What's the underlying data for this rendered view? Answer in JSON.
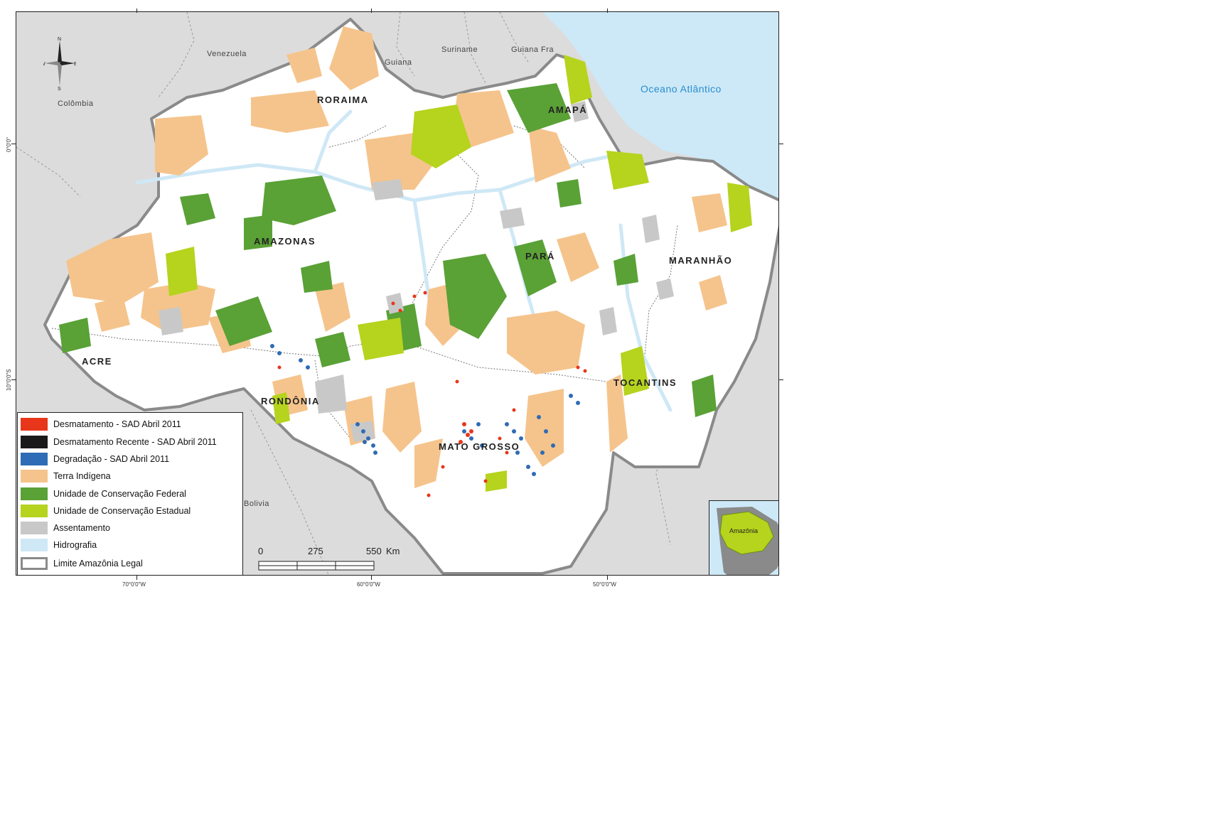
{
  "map": {
    "axis": {
      "x_ticks": [
        "70°0'0\"W",
        "60°0'0\"W",
        "50°0'0\"W"
      ],
      "y_ticks": [
        "0°0'0\"",
        "10°0'0\"S"
      ]
    },
    "compass": {
      "n": "N",
      "s": "S",
      "e": "E",
      "w": "W"
    },
    "ocean_label": "Oceano Atlântico",
    "countries": [
      "Venezuela",
      "Colômbia",
      "Guiana",
      "Suriname",
      "Guiana Fra",
      "Bolivia"
    ],
    "states": [
      "RORAIMA",
      "AMAPÁ",
      "AMAZONAS",
      "PARÁ",
      "MARANHÃO",
      "ACRE",
      "RONDÔNIA",
      "TOCANTINS",
      "MATO GROSSO"
    ],
    "colors": {
      "background": "#dcdcdc",
      "ocean": "#cde9f7",
      "amazonia": "#ffffff",
      "desmatamento": "#e8361a",
      "desmatamento_recente": "#1a1a1a",
      "degradacao": "#2e6cb5",
      "terra_indigena": "#f5c48c",
      "uc_federal": "#5aa136",
      "uc_estadual": "#b6d31e",
      "assentamento": "#c8c8c8",
      "hidrografia": "#cfe8f6",
      "limite": "#8a8a8a"
    }
  },
  "legend": {
    "items": [
      {
        "label": "Desmatamento - SAD Abril 2011",
        "color": "#e8361a"
      },
      {
        "label": "Desmatamento Recente - SAD Abril 2011",
        "color": "#1a1a1a"
      },
      {
        "label": "Degradação - SAD Abril 2011",
        "color": "#2e6cb5"
      },
      {
        "label": "Terra Indígena",
        "color": "#f5c48c"
      },
      {
        "label": "Unidade de Conservação Federal",
        "color": "#5aa136"
      },
      {
        "label": "Unidade de Conservação Estadual",
        "color": "#b6d31e"
      },
      {
        "label": "Assentamento",
        "color": "#c8c8c8"
      },
      {
        "label": "Hidrografia",
        "color": "#cfe8f6"
      },
      {
        "label": "Limite Amazônia Legal",
        "color": "#ffffff"
      }
    ]
  },
  "scale": {
    "labels": [
      "0",
      "275",
      "550"
    ],
    "unit": "Km"
  },
  "inset": {
    "label": "Amazônia"
  }
}
